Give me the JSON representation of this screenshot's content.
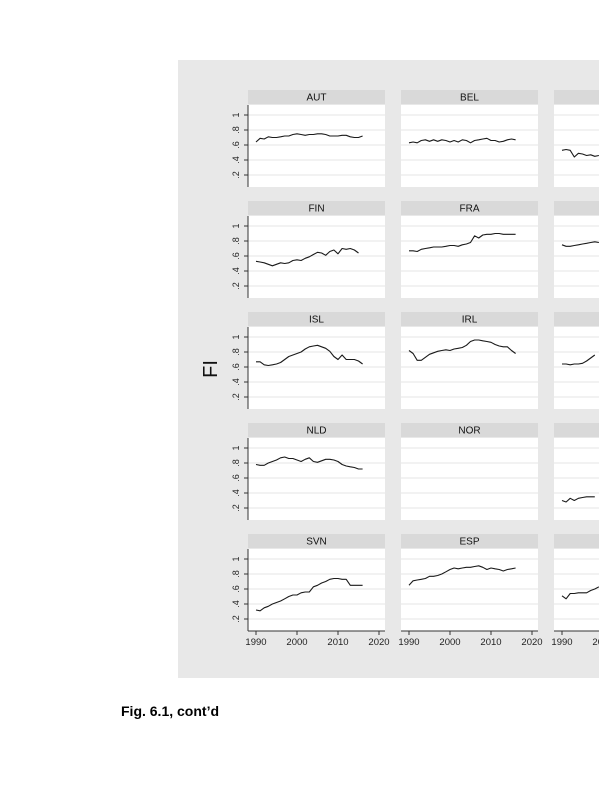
{
  "caption": "Fig. 6.1, cont’d",
  "chart_data": {
    "type": "line",
    "layout": "small-multiples",
    "ylabel": "FI",
    "xlim": [
      1990,
      2020
    ],
    "ylim": [
      0.2,
      1.0
    ],
    "xticks": [
      1990,
      2000,
      2010,
      2020
    ],
    "yticks": [
      0.2,
      0.4,
      0.6,
      0.8,
      1.0
    ],
    "ytick_labels": [
      ".2",
      ".4",
      ".6",
      ".8",
      "1"
    ],
    "grid": true,
    "x": [
      1990,
      1991,
      1992,
      1993,
      1994,
      1995,
      1996,
      1997,
      1998,
      1999,
      2000,
      2001,
      2002,
      2003,
      2004,
      2005,
      2006,
      2007,
      2008,
      2009,
      2010,
      2011,
      2012,
      2013,
      2014,
      2015,
      2016
    ],
    "panels": [
      {
        "title": "AUT",
        "values": [
          0.64,
          0.69,
          0.68,
          0.71,
          0.7,
          0.7,
          0.71,
          0.72,
          0.72,
          0.74,
          0.75,
          0.74,
          0.73,
          0.74,
          0.74,
          0.75,
          0.75,
          0.74,
          0.72,
          0.72,
          0.72,
          0.73,
          0.73,
          0.71,
          0.7,
          0.7,
          0.72
        ]
      },
      {
        "title": "BEL",
        "values": [
          0.63,
          0.64,
          0.63,
          0.66,
          0.67,
          0.65,
          0.67,
          0.65,
          0.67,
          0.66,
          0.64,
          0.66,
          0.64,
          0.67,
          0.66,
          0.63,
          0.66,
          0.67,
          0.68,
          0.69,
          0.66,
          0.66,
          0.64,
          0.65,
          0.67,
          0.68,
          0.67
        ]
      },
      {
        "title": "",
        "values": [
          0.53,
          0.54,
          0.53,
          0.44,
          0.49,
          0.48,
          0.46,
          0.47,
          0.45,
          0.46
        ]
      },
      {
        "title": "FIN",
        "values": [
          0.53,
          0.52,
          0.51,
          0.49,
          0.47,
          0.49,
          0.51,
          0.5,
          0.51,
          0.54,
          0.55,
          0.54,
          0.57,
          0.59,
          0.62,
          0.65,
          0.64,
          0.61,
          0.66,
          0.68,
          0.63,
          0.7,
          0.69,
          0.7,
          0.68,
          0.64
        ]
      },
      {
        "title": "FRA",
        "values": [
          0.67,
          0.67,
          0.66,
          0.69,
          0.7,
          0.71,
          0.72,
          0.72,
          0.72,
          0.73,
          0.74,
          0.74,
          0.73,
          0.75,
          0.76,
          0.78,
          0.87,
          0.84,
          0.88,
          0.89,
          0.89,
          0.9,
          0.9,
          0.89,
          0.89,
          0.89,
          0.89
        ]
      },
      {
        "title": "",
        "values": [
          0.75,
          0.73,
          0.73,
          0.74,
          0.75,
          0.76,
          0.77,
          0.78,
          0.79,
          0.78
        ]
      },
      {
        "title": "ISL",
        "values": [
          0.67,
          0.67,
          0.63,
          0.62,
          0.63,
          0.64,
          0.66,
          0.7,
          0.74,
          0.76,
          0.78,
          0.8,
          0.84,
          0.87,
          0.88,
          0.89,
          0.87,
          0.85,
          0.81,
          0.74,
          0.7,
          0.76,
          0.7,
          0.7,
          0.7,
          0.68,
          0.64
        ]
      },
      {
        "title": "IRL",
        "values": [
          0.82,
          0.78,
          0.69,
          0.69,
          0.73,
          0.77,
          0.79,
          0.81,
          0.82,
          0.83,
          0.82,
          0.84,
          0.85,
          0.86,
          0.89,
          0.94,
          0.96,
          0.96,
          0.95,
          0.94,
          0.93,
          0.9,
          0.88,
          0.87,
          0.87,
          0.82,
          0.78
        ]
      },
      {
        "title": "",
        "values": [
          0.64,
          0.64,
          0.63,
          0.64,
          0.64,
          0.65,
          0.68,
          0.72,
          0.76
        ]
      },
      {
        "title": "NLD",
        "values": [
          0.78,
          0.77,
          0.77,
          0.8,
          0.82,
          0.84,
          0.87,
          0.88,
          0.86,
          0.86,
          0.84,
          0.82,
          0.85,
          0.87,
          0.82,
          0.81,
          0.83,
          0.85,
          0.85,
          0.84,
          0.82,
          0.78,
          0.76,
          0.75,
          0.74,
          0.72,
          0.72
        ]
      },
      {
        "title": "NOR",
        "values": []
      },
      {
        "title": "",
        "values": [
          0.3,
          0.28,
          0.33,
          0.3,
          0.33,
          0.34,
          0.35,
          0.35,
          0.35
        ]
      },
      {
        "title": "SVN",
        "values": [
          0.32,
          0.31,
          0.35,
          0.37,
          0.4,
          0.42,
          0.44,
          0.47,
          0.5,
          0.52,
          0.52,
          0.55,
          0.56,
          0.56,
          0.63,
          0.65,
          0.68,
          0.7,
          0.73,
          0.74,
          0.74,
          0.73,
          0.73,
          0.65,
          0.65,
          0.65,
          0.65
        ]
      },
      {
        "title": "ESP",
        "values": [
          0.65,
          0.71,
          0.72,
          0.73,
          0.74,
          0.77,
          0.77,
          0.78,
          0.8,
          0.83,
          0.86,
          0.88,
          0.87,
          0.88,
          0.89,
          0.89,
          0.9,
          0.91,
          0.89,
          0.86,
          0.88,
          0.87,
          0.86,
          0.84,
          0.86,
          0.87,
          0.88
        ]
      },
      {
        "title": "",
        "values": [
          0.51,
          0.47,
          0.54,
          0.54,
          0.55,
          0.55,
          0.55,
          0.58,
          0.6,
          0.63
        ]
      }
    ]
  }
}
